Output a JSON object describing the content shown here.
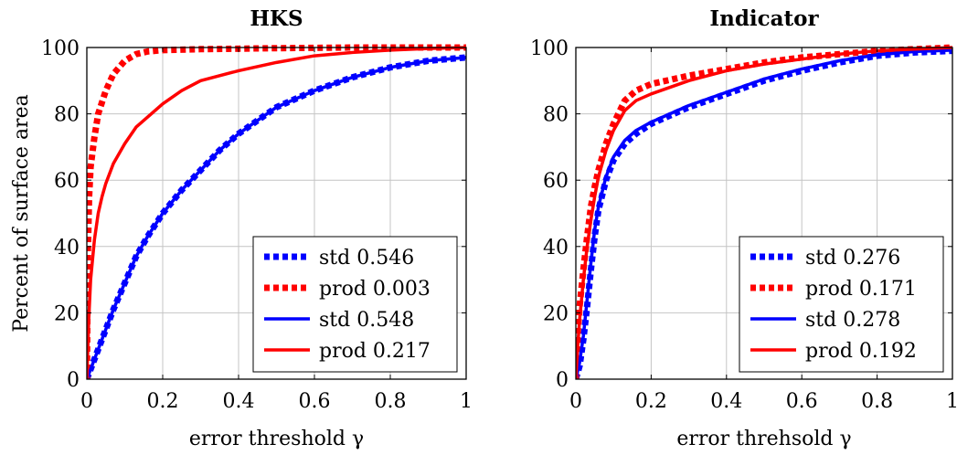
{
  "chart_data": [
    {
      "type": "line",
      "title": "HKS",
      "xlabel": "error threshold γ",
      "ylabel": "Percent of surface area",
      "xlim": [
        0,
        1
      ],
      "ylim": [
        0,
        100
      ],
      "xticks": [
        0,
        0.2,
        0.4,
        0.6,
        0.8,
        1
      ],
      "yticks": [
        0,
        20,
        40,
        60,
        80,
        100
      ],
      "xtick_labels": [
        "0",
        "0.2",
        "0.4",
        "0.6",
        "0.8",
        "1"
      ],
      "ytick_labels": [
        "0",
        "20",
        "40",
        "60",
        "80",
        "100"
      ],
      "grid": true,
      "legend_position": "bottom-right",
      "series": [
        {
          "name": "std 0.546",
          "color": "#0000ff",
          "style": "dotted",
          "x": [
            0,
            0.01,
            0.02,
            0.03,
            0.05,
            0.07,
            0.1,
            0.13,
            0.16,
            0.2,
            0.25,
            0.3,
            0.35,
            0.4,
            0.45,
            0.5,
            0.6,
            0.7,
            0.8,
            0.9,
            1.0
          ],
          "y": [
            0,
            3,
            6,
            9,
            15,
            21,
            29,
            37,
            43,
            50,
            57,
            63,
            69,
            74,
            78,
            82,
            87,
            91,
            94,
            96,
            97
          ]
        },
        {
          "name": "prod 0.003",
          "color": "#ff0000",
          "style": "dotted",
          "x": [
            0,
            0.003,
            0.006,
            0.01,
            0.02,
            0.03,
            0.05,
            0.07,
            0.1,
            0.13,
            0.16,
            0.2,
            0.3,
            0.5,
            0.7,
            1.0
          ],
          "y": [
            0,
            40,
            55,
            64,
            73,
            80,
            87,
            92,
            96,
            98,
            98.8,
            99.2,
            99.5,
            99.8,
            100,
            100
          ]
        },
        {
          "name": "std 0.548",
          "color": "#0000ff",
          "style": "solid",
          "x": [
            0,
            0.01,
            0.02,
            0.03,
            0.05,
            0.07,
            0.1,
            0.13,
            0.16,
            0.2,
            0.25,
            0.3,
            0.35,
            0.4,
            0.45,
            0.5,
            0.6,
            0.7,
            0.8,
            0.9,
            1.0
          ],
          "y": [
            0,
            3,
            6,
            9,
            15,
            21,
            29,
            37,
            43,
            50,
            57,
            63,
            69,
            74,
            78,
            82,
            87,
            91,
            94,
            96,
            97
          ]
        },
        {
          "name": "prod 0.217",
          "color": "#ff0000",
          "style": "solid",
          "x": [
            0,
            0.005,
            0.01,
            0.02,
            0.03,
            0.04,
            0.05,
            0.07,
            0.1,
            0.13,
            0.16,
            0.2,
            0.25,
            0.3,
            0.4,
            0.5,
            0.6,
            0.7,
            0.8,
            0.9,
            1.0
          ],
          "y": [
            0,
            18,
            30,
            42,
            50,
            55,
            59,
            65,
            71,
            76,
            79,
            83,
            87,
            90,
            93,
            95.5,
            97.5,
            98.5,
            99.2,
            99.7,
            100
          ]
        }
      ]
    },
    {
      "type": "line",
      "title": "Indicator",
      "xlabel": "error threhsold γ",
      "ylabel": "",
      "xlim": [
        0,
        1
      ],
      "ylim": [
        0,
        100
      ],
      "xticks": [
        0,
        0.2,
        0.4,
        0.6,
        0.8,
        1
      ],
      "yticks": [
        0,
        20,
        40,
        60,
        80,
        100
      ],
      "xtick_labels": [
        "0",
        "0.2",
        "0.4",
        "0.6",
        "0.8",
        "1"
      ],
      "ytick_labels": [
        "0",
        "20",
        "40",
        "60",
        "80",
        "100"
      ],
      "grid": true,
      "legend_position": "bottom-right",
      "series": [
        {
          "name": "std 0.276",
          "color": "#0000ff",
          "style": "dotted",
          "x": [
            0,
            0.01,
            0.02,
            0.03,
            0.04,
            0.05,
            0.06,
            0.08,
            0.1,
            0.13,
            0.16,
            0.2,
            0.3,
            0.4,
            0.5,
            0.6,
            0.7,
            0.8,
            0.9,
            1.0
          ],
          "y": [
            0,
            4,
            12,
            22,
            33,
            43,
            51,
            60,
            66,
            71,
            74,
            77,
            82,
            86,
            90,
            93,
            95.5,
            97.5,
            98.5,
            99
          ]
        },
        {
          "name": "prod 0.171",
          "color": "#ff0000",
          "style": "dotted",
          "x": [
            0,
            0.005,
            0.01,
            0.02,
            0.03,
            0.04,
            0.05,
            0.06,
            0.08,
            0.1,
            0.13,
            0.16,
            0.2,
            0.3,
            0.4,
            0.5,
            0.6,
            0.7,
            0.8,
            0.9,
            1.0
          ],
          "y": [
            0,
            14,
            22,
            33,
            43,
            52,
            58,
            63,
            71,
            77,
            84,
            87,
            89,
            91.5,
            93.5,
            95.5,
            97,
            98,
            99,
            99.5,
            100
          ]
        },
        {
          "name": "std 0.278",
          "color": "#0000ff",
          "style": "solid",
          "x": [
            0,
            0.01,
            0.02,
            0.03,
            0.04,
            0.05,
            0.06,
            0.08,
            0.1,
            0.13,
            0.16,
            0.2,
            0.3,
            0.4,
            0.5,
            0.6,
            0.7,
            0.8,
            0.9,
            1.0
          ],
          "y": [
            0,
            5,
            13,
            24,
            35,
            45,
            52,
            61,
            67,
            72,
            75,
            77.5,
            82.5,
            86.5,
            90.5,
            93.5,
            96,
            97.8,
            98.8,
            99.2
          ]
        },
        {
          "name": "prod 0.192",
          "color": "#ff0000",
          "style": "solid",
          "x": [
            0,
            0.005,
            0.01,
            0.02,
            0.03,
            0.04,
            0.05,
            0.06,
            0.08,
            0.1,
            0.13,
            0.16,
            0.2,
            0.3,
            0.4,
            0.5,
            0.6,
            0.7,
            0.8,
            0.9,
            1.0
          ],
          "y": [
            0,
            10,
            18,
            30,
            40,
            48,
            55,
            61,
            69,
            75,
            81,
            84,
            86,
            90,
            93,
            95,
            96.5,
            98,
            99,
            99.5,
            100
          ]
        }
      ]
    }
  ]
}
